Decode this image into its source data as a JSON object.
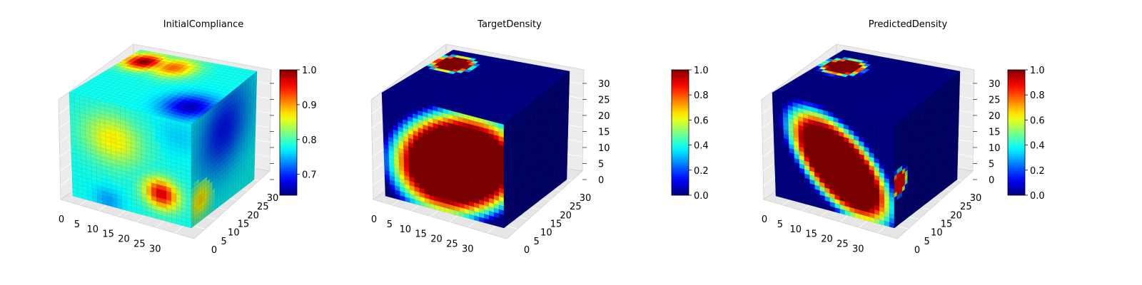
{
  "colormap": "jet",
  "chart_data": [
    {
      "type": "heatmap",
      "subtype": "3d-voxel",
      "title": "InitialCompliance",
      "grid_size": [
        32,
        32,
        32
      ],
      "axes": {
        "x_ticks": [
          "0",
          "5",
          "10",
          "15",
          "20",
          "25",
          "30"
        ],
        "y_ticks": [
          "0",
          "5",
          "10",
          "15",
          "20",
          "25",
          "30"
        ],
        "z_ticks": [],
        "xlim": [
          0,
          32
        ],
        "ylim": [
          0,
          32
        ],
        "zlim": [
          0,
          32
        ]
      },
      "colorbar": {
        "vmin": 0.64,
        "vmax": 1.0,
        "ticks": [
          0.7,
          0.8,
          0.9,
          1.0
        ],
        "tick_labels": [
          "0.7",
          "0.8",
          "0.9",
          "1.0"
        ]
      },
      "field": {
        "base": 0.78,
        "blobs": [
          {
            "face": "top",
            "u": 0.15,
            "v": 0.2,
            "r": 0.2,
            "value": 1.0
          },
          {
            "face": "top",
            "u": 0.4,
            "v": 0.2,
            "r": 0.22,
            "value": 0.92
          },
          {
            "face": "top",
            "u": 0.85,
            "v": 0.75,
            "r": 0.25,
            "value": 0.66
          },
          {
            "face": "front",
            "u": 0.75,
            "v": 0.75,
            "r": 0.18,
            "value": 0.97
          },
          {
            "face": "front",
            "u": 0.35,
            "v": 0.35,
            "r": 0.3,
            "value": 0.87
          },
          {
            "face": "front",
            "u": 0.3,
            "v": 0.95,
            "r": 0.15,
            "value": 0.74
          },
          {
            "face": "front",
            "u": 0.9,
            "v": 0.15,
            "r": 0.22,
            "value": 0.76
          },
          {
            "face": "right",
            "u": 0.5,
            "v": 0.3,
            "r": 0.5,
            "value": 0.69
          },
          {
            "face": "right",
            "u": 0.15,
            "v": 0.8,
            "r": 0.2,
            "value": 0.88
          }
        ]
      }
    },
    {
      "type": "heatmap",
      "subtype": "3d-voxel",
      "title": "TargetDensity",
      "grid_size": [
        32,
        32,
        32
      ],
      "axes": {
        "x_ticks": [
          "0",
          "5",
          "10",
          "15",
          "20",
          "25",
          "30"
        ],
        "y_ticks": [
          "0",
          "5",
          "10",
          "15",
          "20",
          "25",
          "30"
        ],
        "z_ticks": [
          "0",
          "5",
          "10",
          "15",
          "20",
          "25",
          "30"
        ],
        "xlim": [
          0,
          32
        ],
        "ylim": [
          0,
          32
        ],
        "zlim": [
          0,
          32
        ]
      },
      "colorbar": {
        "vmin": 0.0,
        "vmax": 1.0,
        "ticks": [
          0.0,
          0.2,
          0.4,
          0.6,
          0.8,
          1.0
        ],
        "tick_labels": [
          "0.0",
          "0.2",
          "0.4",
          "0.6",
          "0.8",
          "1.0"
        ]
      },
      "field": {
        "base": 0.0,
        "blobs": [
          {
            "face": "top",
            "u": 0.15,
            "v": 0.25,
            "r": 0.16,
            "value": 1.0,
            "sharp": true
          },
          {
            "face": "front",
            "u": 0.62,
            "v": 0.5,
            "r": 0.2,
            "value": 1.0,
            "sharp": true,
            "elong": [
              0.45,
              0.6
            ]
          }
        ]
      }
    },
    {
      "type": "heatmap",
      "subtype": "3d-voxel",
      "title": "PredictedDensity",
      "grid_size": [
        32,
        32,
        32
      ],
      "axes": {
        "x_ticks": [
          "0",
          "5",
          "10",
          "15",
          "20",
          "25",
          "30"
        ],
        "y_ticks": [
          "0",
          "5",
          "10",
          "15",
          "20",
          "25",
          "30"
        ],
        "z_ticks": [
          "0",
          "5",
          "10",
          "15",
          "20",
          "25",
          "30"
        ],
        "xlim": [
          0,
          32
        ],
        "ylim": [
          0,
          32
        ],
        "zlim": [
          0,
          32
        ]
      },
      "colorbar": {
        "vmin": 0.0,
        "vmax": 1.0,
        "ticks": [
          0.0,
          0.2,
          0.4,
          0.6,
          0.8,
          1.0
        ],
        "tick_labels": [
          "0.0",
          "0.2",
          "0.4",
          "0.6",
          "0.8",
          "1.0"
        ]
      },
      "field": {
        "base": 0.0,
        "blobs": [
          {
            "face": "top",
            "u": 0.18,
            "v": 0.3,
            "r": 0.16,
            "value": 1.0,
            "sharp": true
          },
          {
            "face": "front",
            "u": 0.55,
            "v": 0.55,
            "r": 0.22,
            "value": 1.0,
            "sharp": true,
            "elong": [
              0.55,
              0.3
            ]
          },
          {
            "face": "right",
            "u": 0.08,
            "v": 0.6,
            "r": 0.12,
            "value": 0.9,
            "sharp": true
          }
        ]
      }
    }
  ]
}
